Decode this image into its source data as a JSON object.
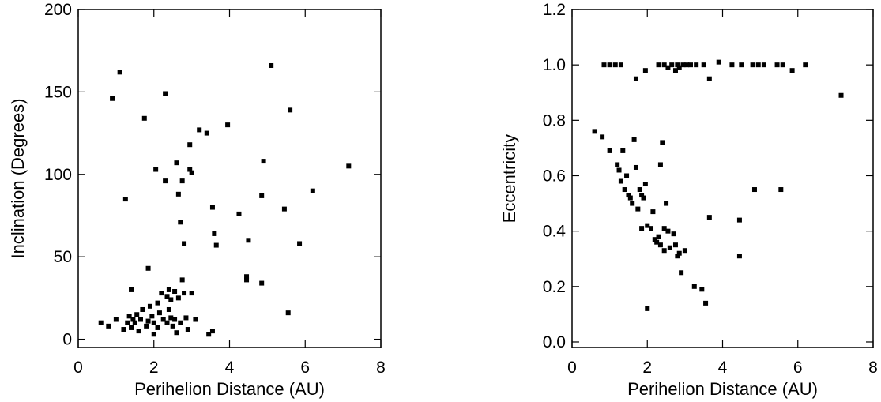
{
  "chart_data": [
    {
      "type": "scatter",
      "title": "",
      "xlabel": "Perihelion Distance (AU)",
      "ylabel": "Inclination (Degrees)",
      "xlim": [
        0,
        8
      ],
      "ylim": [
        -5,
        200
      ],
      "xticks": [
        "0",
        "2",
        "4",
        "6",
        "8"
      ],
      "yticks": [
        "0",
        "50",
        "100",
        "150",
        "200"
      ],
      "xtick_values": [
        0,
        2,
        4,
        6,
        8
      ],
      "ytick_values": [
        0,
        50,
        100,
        150,
        200
      ],
      "grid": false,
      "marker_color": "#000000",
      "points": [
        {
          "x": 0.6,
          "y": 10
        },
        {
          "x": 0.8,
          "y": 8
        },
        {
          "x": 1.0,
          "y": 12
        },
        {
          "x": 1.1,
          "y": 162
        },
        {
          "x": 0.9,
          "y": 146
        },
        {
          "x": 1.2,
          "y": 6
        },
        {
          "x": 1.25,
          "y": 85
        },
        {
          "x": 1.3,
          "y": 10
        },
        {
          "x": 1.35,
          "y": 14
        },
        {
          "x": 1.4,
          "y": 30
        },
        {
          "x": 1.4,
          "y": 7
        },
        {
          "x": 1.45,
          "y": 12
        },
        {
          "x": 1.5,
          "y": 10
        },
        {
          "x": 1.55,
          "y": 15
        },
        {
          "x": 1.6,
          "y": 5
        },
        {
          "x": 1.65,
          "y": 12
        },
        {
          "x": 1.7,
          "y": 18
        },
        {
          "x": 1.75,
          "y": 134
        },
        {
          "x": 1.8,
          "y": 8
        },
        {
          "x": 1.85,
          "y": 43
        },
        {
          "x": 1.85,
          "y": 11
        },
        {
          "x": 1.9,
          "y": 20
        },
        {
          "x": 1.95,
          "y": 14
        },
        {
          "x": 2.0,
          "y": 3
        },
        {
          "x": 2.0,
          "y": 10
        },
        {
          "x": 2.05,
          "y": 103
        },
        {
          "x": 2.1,
          "y": 22
        },
        {
          "x": 2.1,
          "y": 7
        },
        {
          "x": 2.15,
          "y": 16
        },
        {
          "x": 2.2,
          "y": 28
        },
        {
          "x": 2.25,
          "y": 12
        },
        {
          "x": 2.3,
          "y": 149
        },
        {
          "x": 2.3,
          "y": 96
        },
        {
          "x": 2.35,
          "y": 26
        },
        {
          "x": 2.35,
          "y": 10
        },
        {
          "x": 2.4,
          "y": 30
        },
        {
          "x": 2.4,
          "y": 18
        },
        {
          "x": 2.45,
          "y": 24
        },
        {
          "x": 2.45,
          "y": 13
        },
        {
          "x": 2.5,
          "y": 8
        },
        {
          "x": 2.55,
          "y": 29
        },
        {
          "x": 2.55,
          "y": 12
        },
        {
          "x": 2.6,
          "y": 107
        },
        {
          "x": 2.6,
          "y": 4
        },
        {
          "x": 2.65,
          "y": 88
        },
        {
          "x": 2.65,
          "y": 25
        },
        {
          "x": 2.7,
          "y": 71
        },
        {
          "x": 2.7,
          "y": 10
        },
        {
          "x": 2.75,
          "y": 96
        },
        {
          "x": 2.75,
          "y": 36
        },
        {
          "x": 2.8,
          "y": 58
        },
        {
          "x": 2.8,
          "y": 28
        },
        {
          "x": 2.85,
          "y": 13
        },
        {
          "x": 2.9,
          "y": 6
        },
        {
          "x": 2.95,
          "y": 103
        },
        {
          "x": 2.95,
          "y": 118
        },
        {
          "x": 3.0,
          "y": 101
        },
        {
          "x": 3.0,
          "y": 28
        },
        {
          "x": 3.1,
          "y": 12
        },
        {
          "x": 3.2,
          "y": 127
        },
        {
          "x": 3.4,
          "y": 125
        },
        {
          "x": 3.45,
          "y": 3
        },
        {
          "x": 3.55,
          "y": 5
        },
        {
          "x": 3.55,
          "y": 80
        },
        {
          "x": 3.6,
          "y": 64
        },
        {
          "x": 3.65,
          "y": 57
        },
        {
          "x": 3.95,
          "y": 130
        },
        {
          "x": 4.25,
          "y": 76
        },
        {
          "x": 4.45,
          "y": 38
        },
        {
          "x": 4.45,
          "y": 36
        },
        {
          "x": 4.5,
          "y": 60
        },
        {
          "x": 4.85,
          "y": 34
        },
        {
          "x": 4.85,
          "y": 87
        },
        {
          "x": 4.9,
          "y": 108
        },
        {
          "x": 5.1,
          "y": 166
        },
        {
          "x": 5.45,
          "y": 79
        },
        {
          "x": 5.55,
          "y": 16
        },
        {
          "x": 5.6,
          "y": 139
        },
        {
          "x": 5.85,
          "y": 58
        },
        {
          "x": 6.2,
          "y": 90
        },
        {
          "x": 7.15,
          "y": 105
        }
      ]
    },
    {
      "type": "scatter",
      "title": "",
      "xlabel": "Perihelion Distance (AU)",
      "ylabel": "Eccentricity",
      "xlim": [
        0,
        8
      ],
      "ylim": [
        -0.02,
        1.2
      ],
      "xticks": [
        "0",
        "2",
        "4",
        "6",
        "8"
      ],
      "yticks": [
        "0.0",
        "0.2",
        "0.4",
        "0.6",
        "0.8",
        "1.0",
        "1.2"
      ],
      "xtick_values": [
        0,
        2,
        4,
        6,
        8
      ],
      "ytick_values": [
        0,
        0.2,
        0.4,
        0.6,
        0.8,
        1.0,
        1.2
      ],
      "grid": false,
      "marker_color": "#000000",
      "points": [
        {
          "x": 0.85,
          "y": 1.0
        },
        {
          "x": 1.0,
          "y": 1.0
        },
        {
          "x": 1.15,
          "y": 1.0
        },
        {
          "x": 1.3,
          "y": 1.0
        },
        {
          "x": 1.7,
          "y": 0.95
        },
        {
          "x": 1.95,
          "y": 0.98
        },
        {
          "x": 2.3,
          "y": 1.0
        },
        {
          "x": 2.45,
          "y": 1.0
        },
        {
          "x": 2.55,
          "y": 0.99
        },
        {
          "x": 2.65,
          "y": 1.0
        },
        {
          "x": 2.75,
          "y": 0.98
        },
        {
          "x": 2.8,
          "y": 1.0
        },
        {
          "x": 2.85,
          "y": 0.99
        },
        {
          "x": 2.95,
          "y": 1.0
        },
        {
          "x": 3.05,
          "y": 1.0
        },
        {
          "x": 3.15,
          "y": 1.0
        },
        {
          "x": 3.3,
          "y": 1.0
        },
        {
          "x": 3.5,
          "y": 1.0
        },
        {
          "x": 3.65,
          "y": 0.95
        },
        {
          "x": 3.9,
          "y": 1.01
        },
        {
          "x": 4.25,
          "y": 1.0
        },
        {
          "x": 4.5,
          "y": 1.0
        },
        {
          "x": 4.8,
          "y": 1.0
        },
        {
          "x": 4.95,
          "y": 1.0
        },
        {
          "x": 5.1,
          "y": 1.0
        },
        {
          "x": 5.45,
          "y": 1.0
        },
        {
          "x": 5.6,
          "y": 1.0
        },
        {
          "x": 5.85,
          "y": 0.98
        },
        {
          "x": 6.2,
          "y": 1.0
        },
        {
          "x": 7.15,
          "y": 0.89
        },
        {
          "x": 0.6,
          "y": 0.76
        },
        {
          "x": 0.8,
          "y": 0.74
        },
        {
          "x": 1.0,
          "y": 0.69
        },
        {
          "x": 1.2,
          "y": 0.64
        },
        {
          "x": 1.25,
          "y": 0.62
        },
        {
          "x": 1.3,
          "y": 0.58
        },
        {
          "x": 1.35,
          "y": 0.69
        },
        {
          "x": 1.4,
          "y": 0.55
        },
        {
          "x": 1.45,
          "y": 0.6
        },
        {
          "x": 1.5,
          "y": 0.53
        },
        {
          "x": 1.55,
          "y": 0.52
        },
        {
          "x": 1.6,
          "y": 0.5
        },
        {
          "x": 1.65,
          "y": 0.73
        },
        {
          "x": 1.7,
          "y": 0.63
        },
        {
          "x": 1.75,
          "y": 0.48
        },
        {
          "x": 1.8,
          "y": 0.55
        },
        {
          "x": 1.85,
          "y": 0.53
        },
        {
          "x": 1.85,
          "y": 0.41
        },
        {
          "x": 1.9,
          "y": 0.52
        },
        {
          "x": 1.95,
          "y": 0.57
        },
        {
          "x": 2.0,
          "y": 0.42
        },
        {
          "x": 2.0,
          "y": 0.12
        },
        {
          "x": 2.1,
          "y": 0.41
        },
        {
          "x": 2.15,
          "y": 0.47
        },
        {
          "x": 2.2,
          "y": 0.37
        },
        {
          "x": 2.25,
          "y": 0.36
        },
        {
          "x": 2.3,
          "y": 0.38
        },
        {
          "x": 2.35,
          "y": 0.35
        },
        {
          "x": 2.35,
          "y": 0.64
        },
        {
          "x": 2.4,
          "y": 0.72
        },
        {
          "x": 2.45,
          "y": 0.33
        },
        {
          "x": 2.45,
          "y": 0.41
        },
        {
          "x": 2.5,
          "y": 0.5
        },
        {
          "x": 2.55,
          "y": 0.4
        },
        {
          "x": 2.6,
          "y": 0.34
        },
        {
          "x": 2.7,
          "y": 0.39
        },
        {
          "x": 2.75,
          "y": 0.35
        },
        {
          "x": 2.8,
          "y": 0.31
        },
        {
          "x": 2.85,
          "y": 0.32
        },
        {
          "x": 2.9,
          "y": 0.25
        },
        {
          "x": 3.0,
          "y": 0.33
        },
        {
          "x": 3.25,
          "y": 0.2
        },
        {
          "x": 3.45,
          "y": 0.19
        },
        {
          "x": 3.55,
          "y": 0.14
        },
        {
          "x": 3.65,
          "y": 0.45
        },
        {
          "x": 4.45,
          "y": 0.44
        },
        {
          "x": 4.45,
          "y": 0.31
        },
        {
          "x": 4.85,
          "y": 0.55
        },
        {
          "x": 5.55,
          "y": 0.55
        }
      ]
    }
  ]
}
